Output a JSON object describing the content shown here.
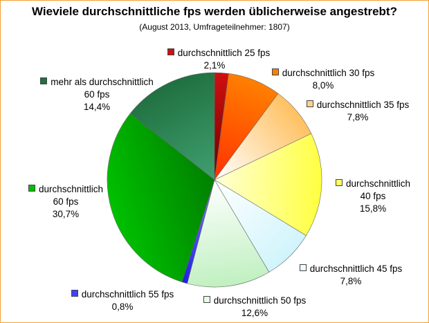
{
  "chart_data": {
    "type": "pie",
    "title": "Wieviele durchschnittliche fps werden üblicherweise angestrebt?",
    "subtitle": "(August 2013, Umfrageteilnehmer: 1807)",
    "slices": [
      {
        "label": "durchschnittlich 25 fps",
        "value": 2.1,
        "value_text": "2,1%",
        "color": "#d01010",
        "light": "#6a0000"
      },
      {
        "label": "durchschnittlich 30 fps",
        "value": 8.0,
        "value_text": "8,0%",
        "color": "#ff8000",
        "light": "#ff3000"
      },
      {
        "label": "durchschnittlich 35 fps",
        "value": 7.8,
        "value_text": "7,8%",
        "color": "#ffc060",
        "light": "#ffffff"
      },
      {
        "label": "durchschnittlich 40 fps",
        "value": 15.8,
        "value_text": "15,8%",
        "color": "#ffff40",
        "light": "#ffffd8"
      },
      {
        "label": "durchschnittlich 45 fps",
        "value": 7.8,
        "value_text": "7,8%",
        "color": "#d0f4fc",
        "light": "#ffffff"
      },
      {
        "label": "durchschnittlich 50 fps",
        "value": 12.6,
        "value_text": "12,6%",
        "color": "#c0f0c0",
        "light": "#ffffff"
      },
      {
        "label": "durchschnittlich 55 fps",
        "value": 0.8,
        "value_text": "0,8%",
        "color": "#2020e0",
        "light": "#8080ff"
      },
      {
        "label": "durchschnittlich 60 fps",
        "value": 30.7,
        "value_text": "30,7%",
        "color": "#00c000",
        "light": "#008000"
      },
      {
        "label": "mehr als durchschnittlich 60 fps",
        "value": 14.4,
        "value_text": "14,4%",
        "color": "#207040",
        "light": "#40a070"
      }
    ]
  },
  "labels": {
    "s0_line1": "durchschnittlich 25 fps",
    "s0_line2": "2,1%",
    "s1_line1": "durchschnittlich 30 fps",
    "s1_line2": "8,0%",
    "s2_line1": "durchschnittlich 35 fps",
    "s2_line2": "7,8%",
    "s3_line1": "durchschnittlich",
    "s3_line2": "40 fps",
    "s3_line3": "15,8%",
    "s4_line1": "durchschnittlich 45 fps",
    "s4_line2": "7,8%",
    "s5_line1": "durchschnittlich 50 fps",
    "s5_line2": "12,6%",
    "s6_line1": "durchschnittlich 55 fps",
    "s6_line2": "0,8%",
    "s7_line1": "durchschnittlich",
    "s7_line2": "60 fps",
    "s7_line3": "30,7%",
    "s8_line1": "mehr als durchschnittlich",
    "s8_line2": "60 fps",
    "s8_line3": "14,4%"
  }
}
